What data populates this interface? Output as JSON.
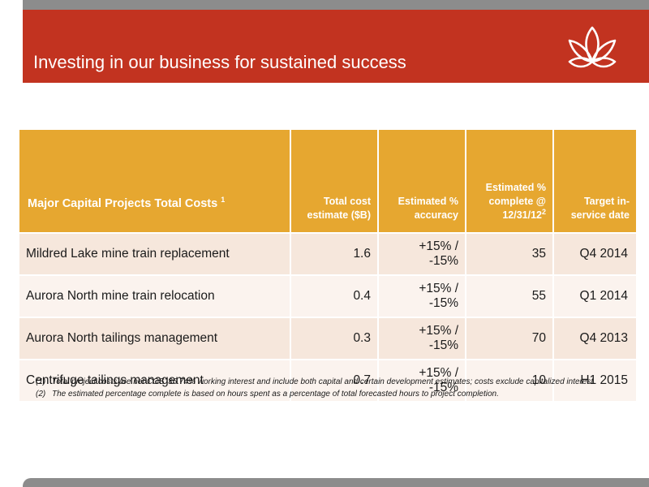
{
  "header": {
    "title": "Investing in our business for sustained success"
  },
  "colors": {
    "brand_red": "#c23320",
    "header_gold": "#e6a730",
    "strip_gray": "#8c8c8c",
    "row_shade_dark": "#f6e7dc",
    "row_shade_light": "#fbf3ee"
  },
  "logo": {
    "icon": "lotus-logo-icon"
  },
  "table": {
    "headers": {
      "project": "Major Capital Projects Total Costs",
      "project_note": "1",
      "cost": "Total cost estimate ($B)",
      "accuracy": "Estimated % accuracy",
      "complete": "Estimated % complete @ 12/31/12",
      "complete_note": "2",
      "date": "Target in-service date"
    },
    "rows": [
      {
        "project": "Mildred Lake mine train replacement",
        "cost": "1.6",
        "accuracy_top": "+15% /",
        "accuracy_bottom": "-15%",
        "complete": "35",
        "date": "Q4 2014"
      },
      {
        "project": "Aurora North mine train relocation",
        "cost": "0.4",
        "accuracy_top": "+15% /",
        "accuracy_bottom": "-15%",
        "complete": "55",
        "date": "Q1 2014"
      },
      {
        "project": "Aurora North tailings management",
        "cost": "0.3",
        "accuracy_top": "+15% /",
        "accuracy_bottom": "-15%",
        "complete": "70",
        "date": "Q4 2013"
      },
      {
        "project": "Centrifuge tailings management",
        "cost": "0.7",
        "accuracy_top": "+15% /",
        "accuracy_bottom": "-15%",
        "complete": "10",
        "date": "H1 2015"
      }
    ]
  },
  "footnotes": [
    {
      "marker": "(1)",
      "text": "Total project costs are net COS’ 36.74% working interest and include both capital and certain development estimates; costs exclude capitalized interest."
    },
    {
      "marker": "(2)",
      "text": "The estimated percentage complete is based on hours spent as a percentage of total forecasted hours to project completion."
    }
  ]
}
